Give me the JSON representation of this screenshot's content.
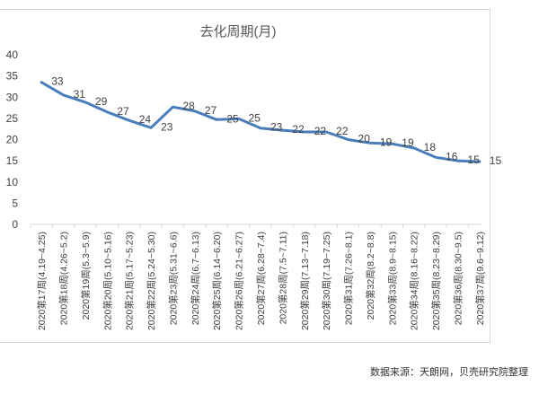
{
  "chart_data": {
    "type": "line",
    "title": "去化周期(月)",
    "xlabel": "",
    "ylabel": "",
    "ylim": [
      0,
      40
    ],
    "yticks": [
      0,
      5,
      10,
      15,
      20,
      25,
      30,
      35,
      40
    ],
    "grid": false,
    "legend": "none",
    "line_color": "#4a7ebb",
    "categories": [
      "2020第17周(4.19~4.25)",
      "2020第18周(4.26~5.2)",
      "2020第19周(5.3~5.9)",
      "2020第20周(5.10~5.16)",
      "2020第21周(5.17~5.23)",
      "2020第22周(5.24~5.30)",
      "2020第23周(5.31~6.6)",
      "2020第24周(6.7~6.13)",
      "2020第25周(6.14~6.20)",
      "2020第26周(6.21~6.27)",
      "2020第27周(6.28~7.4)",
      "2020第28周(7.5~7.11)",
      "2020第29周(7.13~7.18)",
      "2020第30周(7.19~7.25)",
      "2020第31周(7.26~8.1)",
      "2020第32周(8.2~8.8)",
      "2020第33周(8.9~8.15)",
      "2020第34周(8.16~8.22)",
      "2020第35周(8.23~8.29)",
      "2020第36周(8.30~9.5)",
      "2020第37周(9.6~9.12)"
    ],
    "values": [
      33.5,
      30.5,
      28.8,
      26.5,
      24.5,
      22.8,
      27.7,
      26.7,
      24.7,
      24.9,
      22.7,
      22.2,
      21.8,
      21.8,
      20.0,
      19.2,
      19.0,
      18.0,
      15.8,
      15.0,
      14.8
    ],
    "data_labels": [
      "33",
      "31",
      "29",
      "27",
      "24",
      "23",
      "28",
      "27",
      "25",
      "25",
      "23",
      "22",
      "22",
      "22",
      "20",
      "19",
      "19",
      "18",
      "16",
      "15",
      "15"
    ]
  },
  "source_note": "数据来源：天朗网，贝壳研究院整理"
}
